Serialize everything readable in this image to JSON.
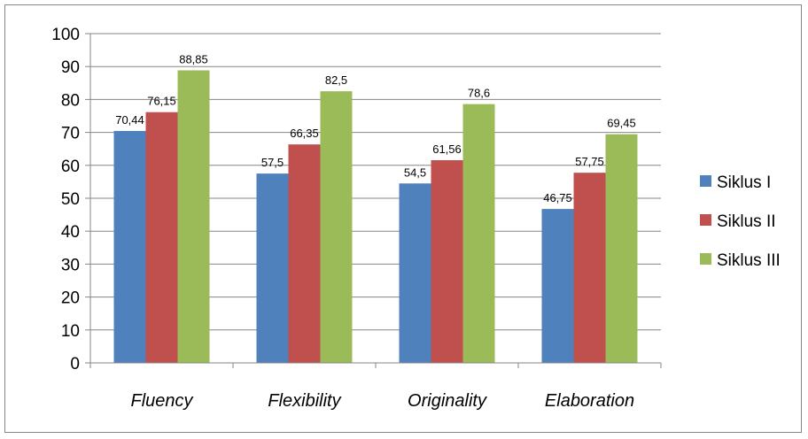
{
  "chart_data": {
    "type": "bar",
    "categories": [
      "Fluency",
      "Flexibility",
      "Originality",
      "Elaboration"
    ],
    "series": [
      {
        "name": "Siklus I",
        "values": [
          70.44,
          57.5,
          54.5,
          46.75
        ],
        "labels": [
          "70,44",
          "57,5",
          "54,5",
          "46,75"
        ],
        "color": "#4F81BD"
      },
      {
        "name": "Siklus II",
        "values": [
          76.15,
          66.35,
          61.56,
          57.75
        ],
        "labels": [
          "76,15",
          "66,35",
          "61,56",
          "57,75"
        ],
        "color": "#C0504D"
      },
      {
        "name": "Siklus III",
        "values": [
          88.85,
          82.5,
          78.6,
          69.45
        ],
        "labels": [
          "88,85",
          "82,5",
          "78,6",
          "69,45"
        ],
        "color": "#9BBB59"
      }
    ],
    "yticks": [
      "0",
      "10",
      "20",
      "30",
      "40",
      "50",
      "60",
      "70",
      "80",
      "90",
      "100"
    ],
    "ylim": [
      0,
      100
    ],
    "grid": true,
    "legend": "right",
    "category_label_style": "italic"
  }
}
